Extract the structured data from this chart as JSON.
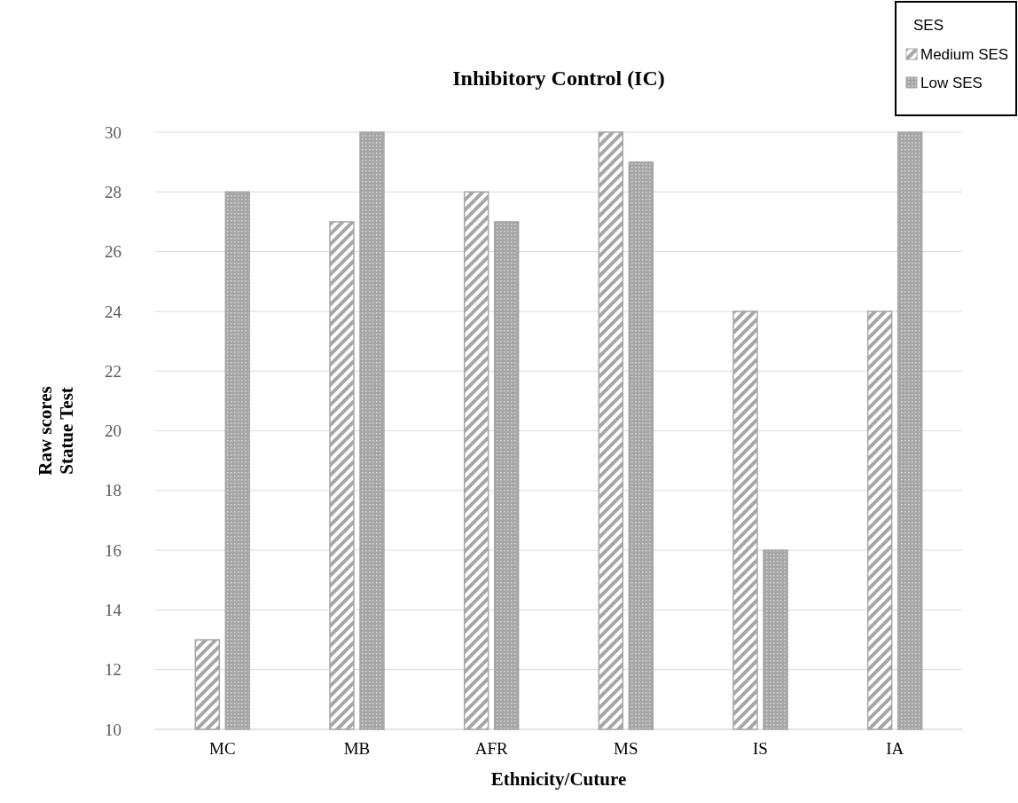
{
  "chart_data": {
    "type": "bar",
    "title": "Inhibitory Control (IC)",
    "xlabel": "Ethnicity/Cuture",
    "ylabel": "Raw scores\nStatue Test",
    "legend_title": "SES",
    "categories": [
      "MC",
      "MB",
      "AFR",
      "MS",
      "IS",
      "IA"
    ],
    "series": [
      {
        "name": "Medium SES",
        "color": "#a6a6a6",
        "values": [
          13,
          27,
          28,
          30,
          24,
          24
        ]
      },
      {
        "name": "Low SES",
        "color": "#a6a6a6",
        "values": [
          28,
          30,
          27,
          29,
          16,
          30
        ]
      }
    ],
    "ylim": [
      10,
      30
    ],
    "yticks": [
      10,
      12,
      14,
      16,
      18,
      20,
      22,
      24,
      26,
      28,
      30
    ],
    "grid": "y",
    "legend": "top right"
  }
}
